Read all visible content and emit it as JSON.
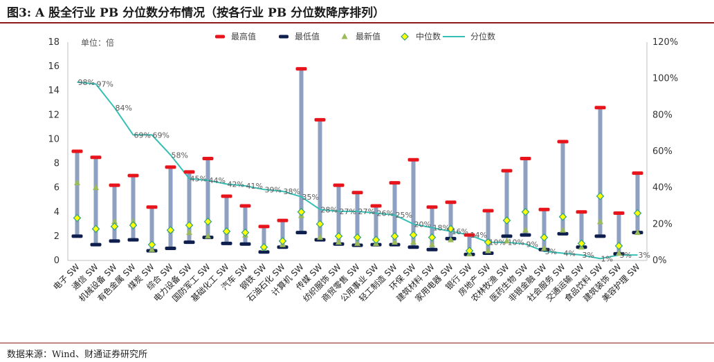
{
  "page": {
    "title": "图3: A 股全行业 PB 分位数分布情况（按各行业 PB 分位数降序排列）",
    "source": "数据来源：Wind、财通证券研究所"
  },
  "chart_data": {
    "type": "line",
    "unit_label": "单位：倍",
    "categories": [
      "电子 SW",
      "通信 SW",
      "机械设备 SW",
      "有色金属 SW",
      "煤炭 SW",
      "综合 SW",
      "电力设备 SW",
      "国防军工 SW",
      "基础化工 SW",
      "汽车 SW",
      "钢铁 SW",
      "石油石化 SW",
      "计算机 SW",
      "传媒 SW",
      "纺织服饰 SW",
      "商贸零售 SW",
      "公用事业 SW",
      "轻工制造 SW",
      "环保 SW",
      "建筑材料 SW",
      "家用电器 SW",
      "银行 SW",
      "房地产 SW",
      "农林牧渔 SW",
      "医药生物 SW",
      "非银金融 SW",
      "社会服务 SW",
      "交通运输 SW",
      "食品饮料 SW",
      "建筑装饰 SW",
      "美容护理 SW"
    ],
    "y_left": {
      "min": 0,
      "max": 18,
      "ticks": [
        "0",
        "2",
        "4",
        "6",
        "8",
        "10",
        "12",
        "14",
        "16",
        "18"
      ]
    },
    "y_right": {
      "min": 0,
      "max": 120,
      "ticks": [
        "0%",
        "20%",
        "40%",
        "60%",
        "80%",
        "100%",
        "120%"
      ]
    },
    "legend": {
      "position": "top",
      "items": [
        "最高值",
        "最低值",
        "最新值",
        "中位数",
        "分位数"
      ]
    },
    "colors": {
      "max": "#e8141c",
      "min": "#0e1f4e",
      "latest": "#9bbb59",
      "median_fill": "#ffff00",
      "median_stroke": "#2e9f8a",
      "range_bar": "#8ea1c0",
      "pct_line": "#35bfb4"
    },
    "series": [
      {
        "name": "最高值",
        "values": [
          9.0,
          8.5,
          6.2,
          7.0,
          4.4,
          7.7,
          7.3,
          8.4,
          5.3,
          4.5,
          2.8,
          3.3,
          15.8,
          11.6,
          6.2,
          5.6,
          4.5,
          6.4,
          8.3,
          4.4,
          4.8,
          2.1,
          4.1,
          7.4,
          8.4,
          4.2,
          9.8,
          4.0,
          12.6,
          3.9,
          7.2
        ]
      },
      {
        "name": "最低值",
        "values": [
          2.0,
          1.3,
          1.6,
          1.7,
          0.8,
          1.0,
          1.5,
          1.9,
          1.4,
          1.35,
          0.7,
          1.1,
          2.3,
          1.7,
          1.35,
          1.25,
          1.3,
          1.3,
          1.1,
          0.9,
          1.8,
          0.5,
          0.6,
          2.0,
          2.1,
          0.9,
          2.2,
          1.1,
          2.0,
          0.55,
          2.3
        ]
      },
      {
        "name": "最新值",
        "values": [
          6.4,
          6.0,
          3.2,
          3.2,
          0.9,
          2.5,
          2.3,
          2.0,
          2.4,
          2.1,
          1.0,
          1.3,
          3.7,
          1.9,
          1.5,
          1.4,
          1.4,
          1.5,
          1.5,
          1.3,
          1.7,
          0.55,
          0.8,
          1.6,
          2.5,
          1.0,
          2.5,
          1.1,
          3.2,
          0.6,
          2.3
        ]
      },
      {
        "name": "中位数",
        "values": [
          3.5,
          2.6,
          2.8,
          2.9,
          1.3,
          2.5,
          2.9,
          3.2,
          2.4,
          2.3,
          1.1,
          1.6,
          4.0,
          3.0,
          2.0,
          1.9,
          1.7,
          2.0,
          2.1,
          1.9,
          2.6,
          0.8,
          1.5,
          3.3,
          4.0,
          1.9,
          3.6,
          1.4,
          5.3,
          1.2,
          3.9
        ]
      },
      {
        "name": "分位数",
        "values": [
          98,
          97,
          84,
          69,
          69,
          58,
          45,
          44,
          42,
          41,
          39,
          38,
          35,
          28,
          27,
          27,
          26,
          25,
          20,
          18,
          16,
          14,
          10,
          10,
          9,
          5,
          4,
          3,
          1,
          3,
          3
        ]
      }
    ],
    "pct_labels": [
      "98%",
      "97%",
      "84%",
      "69%",
      "69%",
      "58%",
      "45%",
      "44%",
      "42%",
      "41%",
      "39%",
      "38%",
      "35%",
      "28%",
      "27%",
      "27%",
      "26%",
      "25%",
      "20%",
      "18%",
      "16%",
      "14%",
      "10%",
      "10%",
      "9%",
      "5%",
      "4%",
      "3%",
      "1%",
      "3%",
      "3%"
    ]
  }
}
